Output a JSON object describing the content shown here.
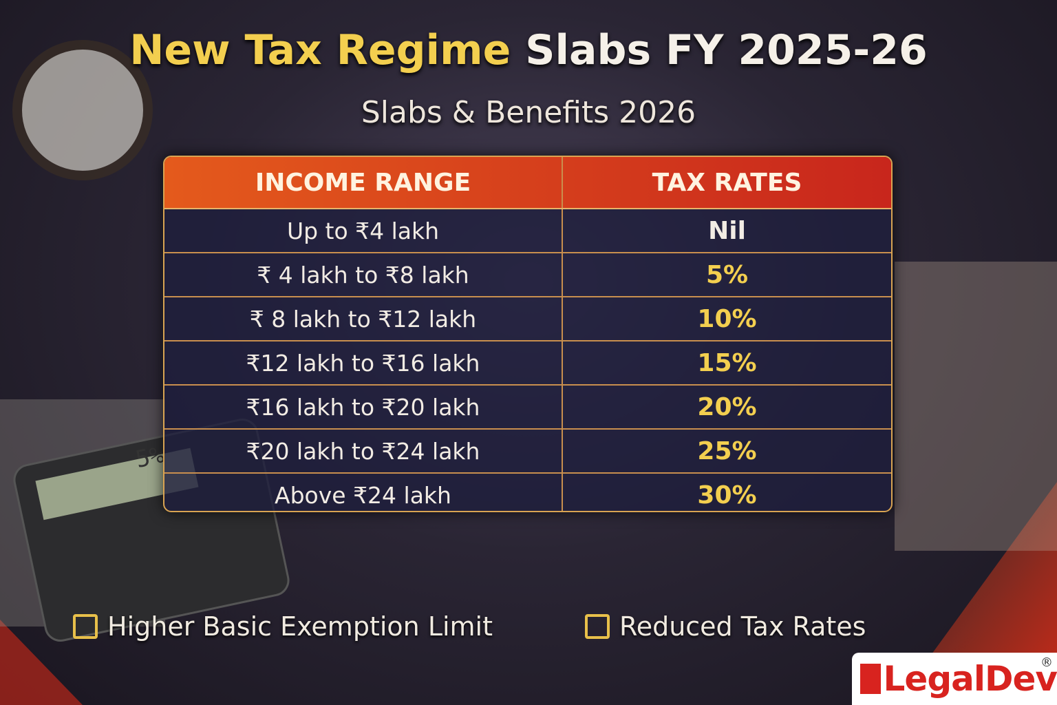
{
  "header": {
    "title_highlight": "New Tax Regime",
    "title_rest": "Slabs FY 2025-26",
    "subtitle": "Slabs & Benefits 2026"
  },
  "table": {
    "columns": [
      "INCOME RANGE",
      "TAX RATES"
    ],
    "rows": [
      [
        "Up to ₹4 lakh",
        "Nil"
      ],
      [
        "₹ 4 lakh to ₹8 lakh",
        "5%"
      ],
      [
        "₹ 8 lakh to ₹12 lakh",
        "10%"
      ],
      [
        "₹12 lakh to ₹16 lakh",
        "15%"
      ],
      [
        "₹16 lakh to ₹20 lakh",
        "20%"
      ],
      [
        "₹20 lakh to ₹24 lakh",
        "25%"
      ],
      [
        "Above ₹24 lakh",
        "30%"
      ]
    ]
  },
  "benefits": [
    "Higher Basic Exemption Limit",
    "Reduced Tax Rates"
  ],
  "logo": {
    "name": "LegalDev",
    "mark": "®"
  },
  "calculator_display": "5%"
}
